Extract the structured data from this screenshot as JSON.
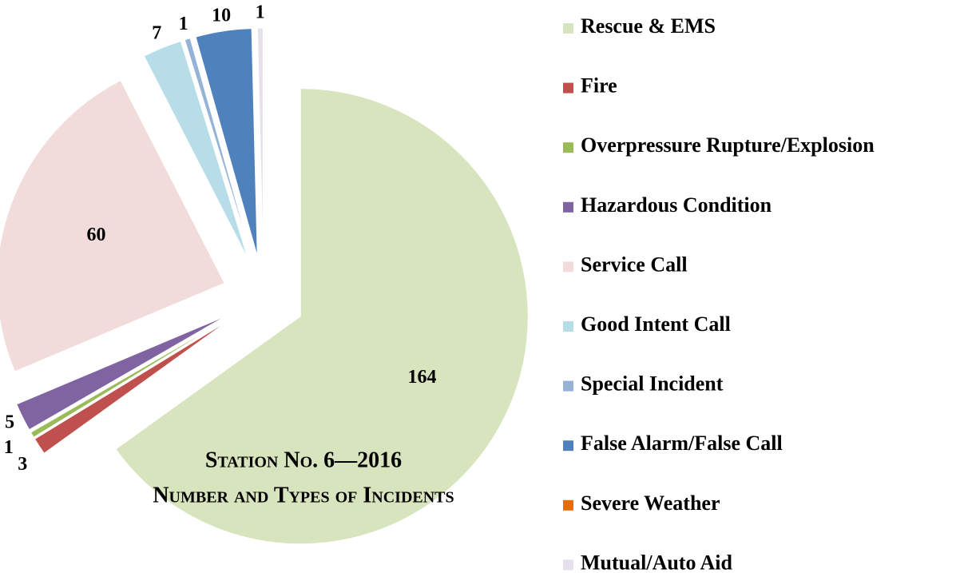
{
  "chart_data": {
    "type": "pie",
    "title": "Station No. 6—2016",
    "subtitle": "Number and Types of Incidents",
    "categories": [
      "Rescue & EMS",
      "Fire",
      "Overpressure Rupture/Explosion",
      "Hazardous Condition",
      "Service Call",
      "Good Intent Call",
      "Special Incident",
      "False Alarm/False Call",
      "Severe Weather",
      "Mutual/Auto Aid"
    ],
    "values": [
      164,
      3,
      1,
      5,
      60,
      7,
      1,
      10,
      0,
      1
    ],
    "colors": [
      "#d7e4bd",
      "#c0504d",
      "#9bbb59",
      "#8064a2",
      "#f2dcdb",
      "#b7dee8",
      "#95b3d7",
      "#4f81bd",
      "#e46c0a",
      "#e6e0ec"
    ],
    "legend": "right"
  }
}
